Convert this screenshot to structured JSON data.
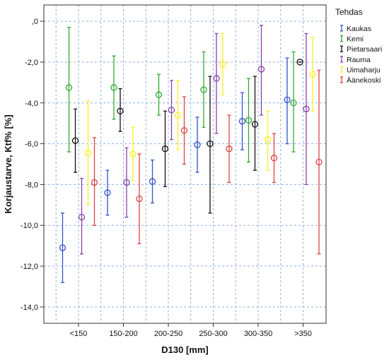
{
  "chart_data": {
    "type": "errorbar",
    "xlabel": "D130 [mm]",
    "ylabel": "Korjaustarve, Ktf% [%]",
    "legend_title": "Tehdas",
    "legend_position": "right",
    "grid": true,
    "ylim": [
      -14.8,
      0.8
    ],
    "yticks": [
      0,
      -2,
      -4,
      -6,
      -8,
      -10,
      -12,
      -14
    ],
    "ytick_labels": [
      ",0",
      "-2,0",
      "-4,0",
      "-6,0",
      "-8,0",
      "-10,0",
      "-12,0",
      "-14,0"
    ],
    "categories": [
      "<150",
      "150-200",
      "200-250",
      "250-300",
      "300-350",
      ">350"
    ],
    "series": [
      {
        "name": "Kaukas",
        "color": "#3355cc",
        "mean": [
          -11.1,
          -8.4,
          -7.85,
          -6.05,
          -4.9,
          -3.85
        ],
        "lower": [
          -12.8,
          -9.5,
          -8.9,
          -7.4,
          -6.3,
          -6.0
        ],
        "upper": [
          -9.4,
          -7.3,
          -6.8,
          -4.7,
          -3.5,
          -1.8
        ]
      },
      {
        "name": "Kemi",
        "color": "#33aa33",
        "mean": [
          -3.25,
          -3.25,
          -3.6,
          -3.35,
          -4.85,
          -4.0
        ],
        "lower": [
          -6.4,
          -4.8,
          -4.6,
          -5.2,
          -6.9,
          -6.4
        ],
        "upper": [
          -0.3,
          -1.7,
          -2.6,
          -1.5,
          -2.8,
          -1.5
        ]
      },
      {
        "name": "Pietarsaari",
        "color": "#111111",
        "mean": [
          -5.85,
          -4.4,
          -6.25,
          -6.0,
          -5.05,
          -2.0
        ],
        "lower": [
          -7.4,
          -5.4,
          -8.1,
          -9.4,
          -7.3,
          -2.0
        ],
        "upper": [
          -4.3,
          -3.3,
          -4.4,
          -2.7,
          -2.7,
          -2.0
        ]
      },
      {
        "name": "Rauma",
        "color": "#8844aa",
        "mean": [
          -9.6,
          -7.9,
          -4.35,
          -2.8,
          -2.35,
          -4.3
        ],
        "lower": [
          -11.4,
          -9.6,
          -5.8,
          -5.5,
          -4.6,
          -8.0
        ],
        "upper": [
          -7.7,
          -6.2,
          -2.9,
          -0.6,
          -0.2,
          -0.6
        ]
      },
      {
        "name": "Uimaharju",
        "color": "#ffee22",
        "mean": [
          -6.45,
          -6.5,
          -4.6,
          -2.1,
          -5.8,
          -2.6
        ],
        "lower": [
          -9.0,
          -7.8,
          -6.3,
          -3.6,
          -7.3,
          -4.4
        ],
        "upper": [
          -3.9,
          -5.2,
          -2.9,
          -0.6,
          -4.4,
          -0.8
        ]
      },
      {
        "name": "Äänekoski",
        "color": "#dd4444",
        "mean": [
          -7.9,
          -8.7,
          -5.35,
          -6.25,
          -6.7,
          -6.9
        ],
        "lower": [
          -10.0,
          -10.9,
          -7.0,
          -7.9,
          -7.9,
          -11.4
        ],
        "upper": [
          -5.7,
          -6.5,
          -3.7,
          -4.6,
          -5.5,
          -2.4
        ]
      }
    ]
  }
}
